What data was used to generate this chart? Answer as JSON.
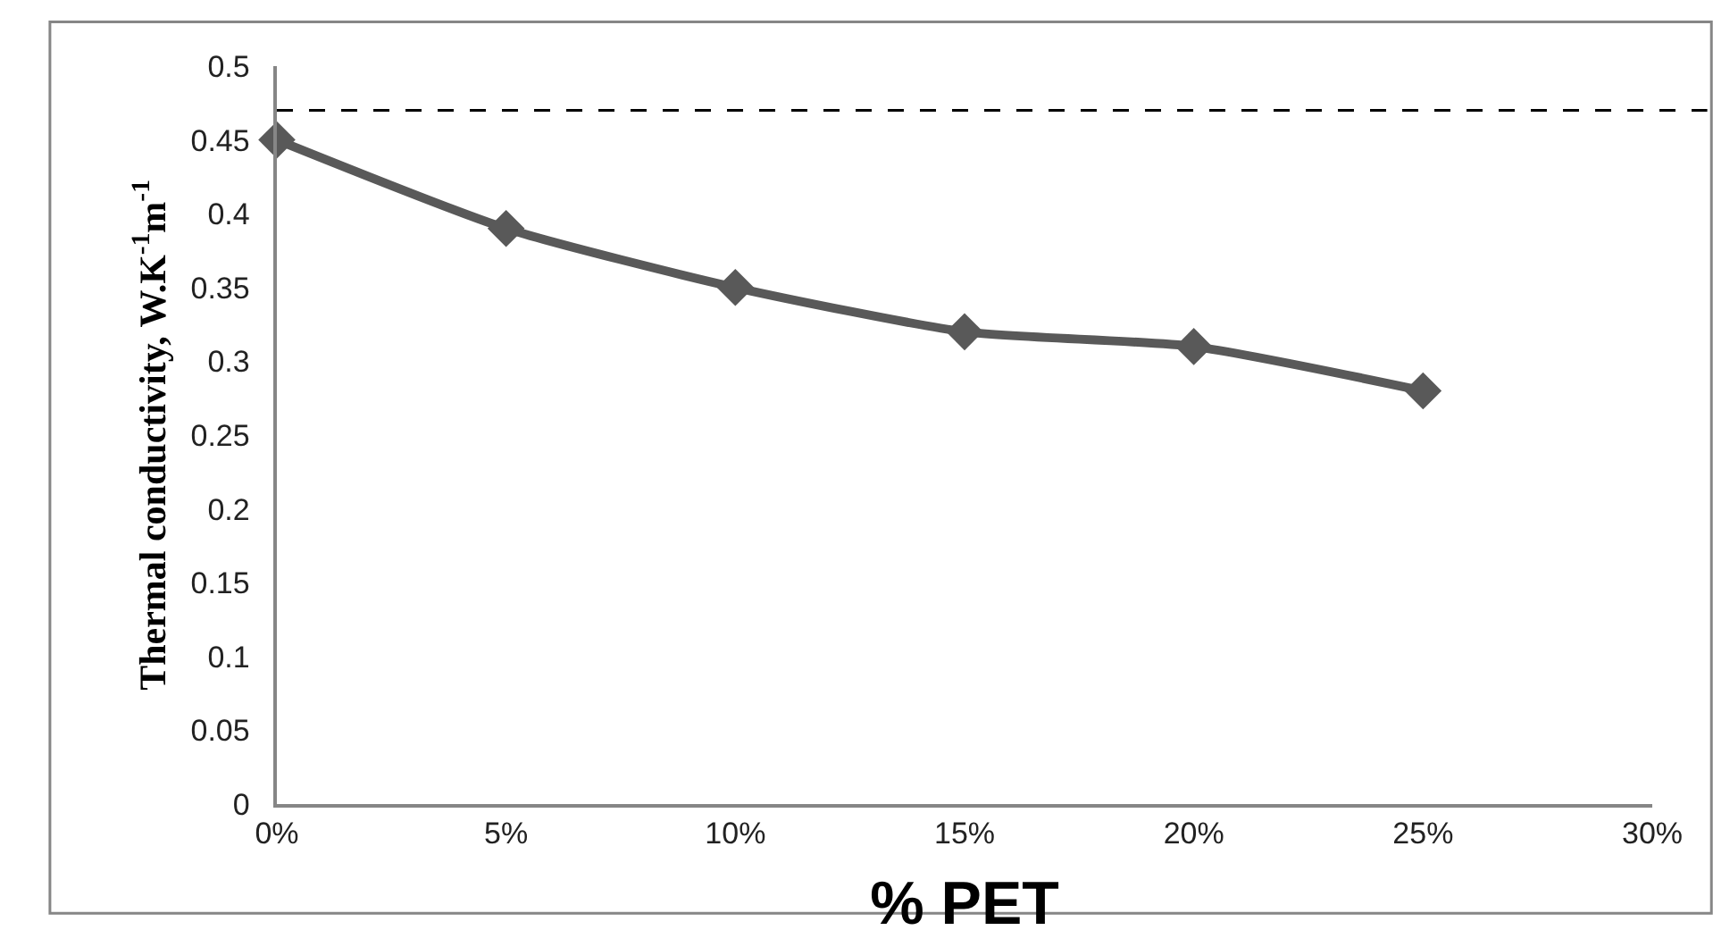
{
  "chart_data": {
    "type": "line",
    "xlabel": "% PET",
    "ylabel": "Thermal conductivity, W.K$^{-1}$m$^{-1}$",
    "x": [
      0,
      0.05,
      0.1,
      0.15,
      0.2,
      0.25
    ],
    "series": [
      {
        "color": "#595959",
        "values": [
          0.45,
          0.39,
          0.35,
          0.32,
          0.31,
          0.28
        ]
      }
    ],
    "marker": "diamond",
    "line_style": "solid",
    "xlim": [
      0,
      0.3
    ],
    "xticks": [
      {
        "value": 0,
        "label": "0%"
      },
      {
        "value": 0.05,
        "label": "5%"
      },
      {
        "value": 0.1,
        "label": "10%"
      },
      {
        "value": 0.15,
        "label": "15%"
      },
      {
        "value": 0.2,
        "label": "20%"
      },
      {
        "value": 0.25,
        "label": "25%"
      },
      {
        "value": 0.3,
        "label": "30%"
      }
    ],
    "ylim": [
      0,
      0.5
    ],
    "yticks": [
      0,
      0.05,
      0.1,
      0.15,
      0.2,
      0.25,
      0.3,
      0.35,
      0.4,
      0.45,
      0.5
    ],
    "ref_lines": [
      {
        "axis": "y",
        "value": 0.47,
        "color": "#000000",
        "line_style": "dashed"
      }
    ]
  }
}
